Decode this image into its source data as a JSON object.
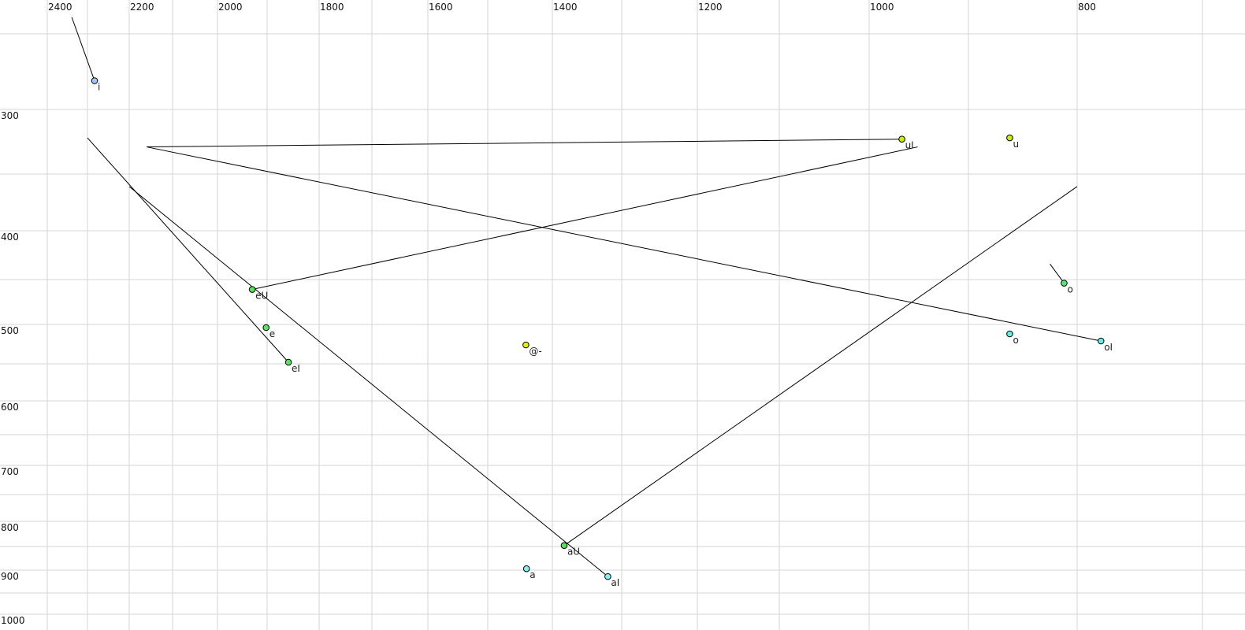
{
  "chart_data": {
    "type": "scatter",
    "title": "",
    "xlabel": "",
    "ylabel": "",
    "x_axis": {
      "reversed": true,
      "position": "top",
      "range": [
        2400,
        700
      ],
      "tick_labels": [
        "2400",
        "2200",
        "2000",
        "1800",
        "1600",
        "1400",
        "1200",
        "1000",
        "800"
      ],
      "grid_step": 100
    },
    "y_axis": {
      "reversed": false,
      "position": "left",
      "range": [
        250,
        1000
      ],
      "tick_labels": [
        "300",
        "400",
        "500",
        "600",
        "700",
        "800",
        "900",
        "1000"
      ],
      "grid_step": 50
    },
    "grid": true,
    "points": [
      {
        "label": "i",
        "f2": 2283,
        "f1": 281,
        "color": "#9cc8ff",
        "trail_to": [
          2339,
          239
        ],
        "trail_color": "#000000"
      },
      {
        "label": "uI",
        "f2": 967,
        "f1": 323,
        "color": "#c8f000",
        "trail_to": [
          2160,
          329
        ],
        "trail_color": "#000000"
      },
      {
        "label": "u",
        "f2": 862,
        "f1": 322,
        "color": "#c8f000"
      },
      {
        "label": "o",
        "f2": 812,
        "f1": 454,
        "color": "#50e878",
        "trail_to": [
          825,
          434
        ],
        "trail_color": "#666666",
        "label_color": "#666688"
      },
      {
        "label": "o",
        "f2": 862,
        "f1": 512,
        "color": "#60f0e0"
      },
      {
        "label": "oI",
        "f2": 781,
        "f1": 521,
        "color": "#60f0e0",
        "trail_to": [
          2160,
          329
        ],
        "trail_color": "#000000"
      },
      {
        "label": "eU",
        "f2": 1930,
        "f1": 461,
        "color": "#50e850",
        "trail_to": [
          951,
          329
        ],
        "trail_color": "#000000"
      },
      {
        "label": "e",
        "f2": 1902,
        "f1": 504,
        "color": "#50e860"
      },
      {
        "label": "eI",
        "f2": 1859,
        "f1": 548,
        "color": "#50e860",
        "trail_to": [
          2300,
          322
        ],
        "trail_color": "#000000"
      },
      {
        "label": "@-",
        "f2": 1441,
        "f1": 526,
        "color": "#e6f000"
      },
      {
        "label": "aU",
        "f2": 1383,
        "f1": 848,
        "color": "#50e850",
        "trail_to": [
          800,
          361
        ],
        "trail_color": "#000000"
      },
      {
        "label": "a",
        "f2": 1440,
        "f1": 897,
        "color": "#80f0f0"
      },
      {
        "label": "aI",
        "f2": 1320,
        "f1": 914,
        "color": "#80f0f0",
        "trail_to": [
          2200,
          361
        ],
        "trail_color": "#000000"
      }
    ]
  }
}
